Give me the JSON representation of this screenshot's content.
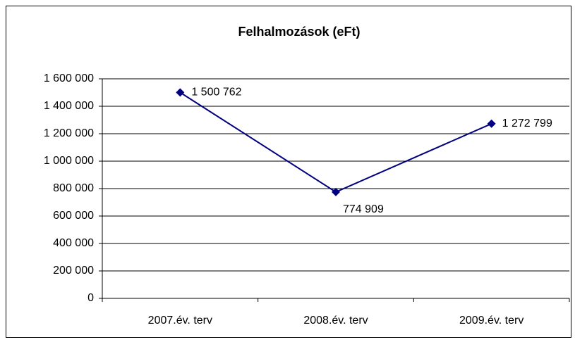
{
  "chart_data": {
    "type": "line",
    "title": "Felhalmozások (eFt)",
    "categories": [
      "2007.év. terv",
      "2008.év. terv",
      "2009.év. terv"
    ],
    "series": [
      {
        "name": "Felhalmozások",
        "color": "#000080",
        "values": [
          1500762,
          774909,
          1272799
        ],
        "value_labels": [
          "1 500 762",
          "774 909",
          "1 272 799"
        ]
      }
    ],
    "ylim": [
      0,
      1600000
    ],
    "yticks": [
      0,
      {
        "value": 200000,
        "label": "200 000"
      },
      {
        "value": 400000,
        "label": "400 000"
      },
      {
        "value": 600000,
        "label": "600 000"
      },
      {
        "value": 800000,
        "label": "800 000"
      },
      {
        "value": 1000000,
        "label": "1 000 000"
      },
      {
        "value": 1200000,
        "label": "1 200 000"
      },
      {
        "value": 1400000,
        "label": "1 400 000"
      },
      {
        "value": 1600000,
        "label": "1 600 000"
      }
    ],
    "grid": true
  }
}
